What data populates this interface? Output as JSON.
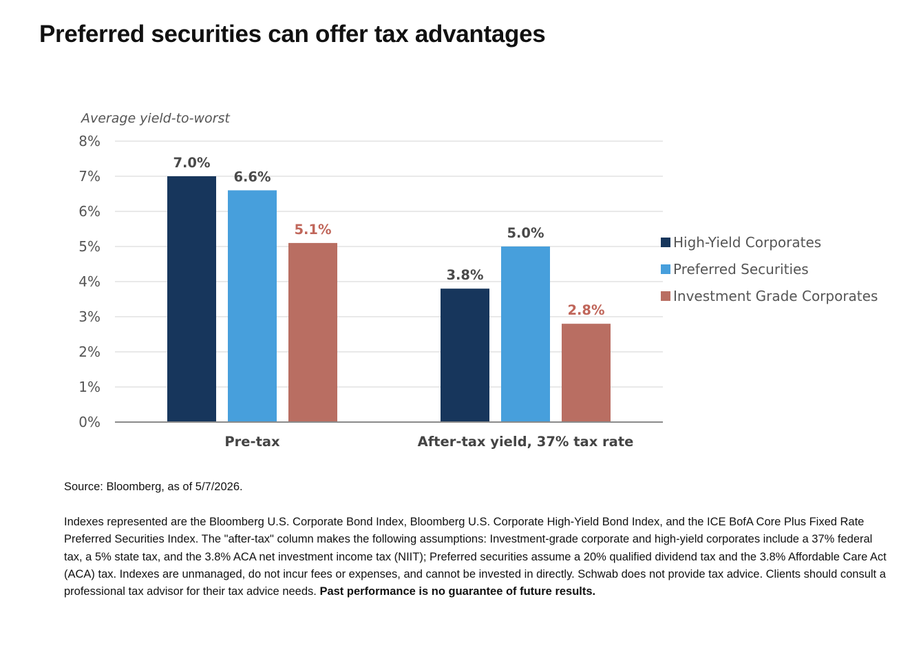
{
  "page": {
    "title": "Preferred securities can offer tax advantages"
  },
  "chart_data": {
    "type": "bar",
    "title": "",
    "ylabel": "Average yield-to-worst",
    "xlabel": "",
    "ylim": [
      0,
      8
    ],
    "yticks": [
      0,
      1,
      2,
      3,
      4,
      5,
      6,
      7,
      8
    ],
    "ytick_labels": [
      "0%",
      "1%",
      "2%",
      "3%",
      "4%",
      "5%",
      "6%",
      "7%",
      "8%"
    ],
    "grid": true,
    "legend_position": "right",
    "categories": [
      "Pre-tax",
      "After-tax yield, 37% tax rate"
    ],
    "series": [
      {
        "name": "High-Yield Corporates",
        "color": "#17365c",
        "label_color": "#4a4a4a",
        "values": [
          7.0,
          3.8
        ],
        "value_labels": [
          "7.0%",
          "3.8%"
        ]
      },
      {
        "name": "Preferred Securities",
        "color": "#479fdc",
        "label_color": "#4a4a4a",
        "values": [
          6.6,
          5.0
        ],
        "value_labels": [
          "6.6%",
          "5.0%"
        ]
      },
      {
        "name": "Investment Grade Corporates",
        "color": "#b96e62",
        "label_color": "#c0665a",
        "values": [
          5.1,
          2.8
        ],
        "value_labels": [
          "5.1%",
          "2.8%"
        ]
      }
    ]
  },
  "footer": {
    "source": "Source: Bloomberg, as of 5/7/2026.",
    "notes": "Indexes represented are the Bloomberg U.S. Corporate Bond Index, Bloomberg U.S. Corporate High-Yield Bond Index, and the ICE BofA Core Plus Fixed Rate Preferred Securities Index. The \"after-tax\" column makes the following assumptions: Investment-grade corporate and high-yield corporates include a 37% federal tax, a 5% state tax, and the 3.8% ACA net investment income tax (NIIT); Preferred securities assume a 20% qualified dividend tax and the 3.8% Affordable Care Act (ACA) tax. Indexes are unmanaged, do not incur fees or expenses, and cannot be invested in directly. Schwab does not provide tax advice. Clients should consult a professional tax advisor for their tax advice needs. ",
    "disclaimer_bold": "Past performance is no guarantee of future results."
  }
}
